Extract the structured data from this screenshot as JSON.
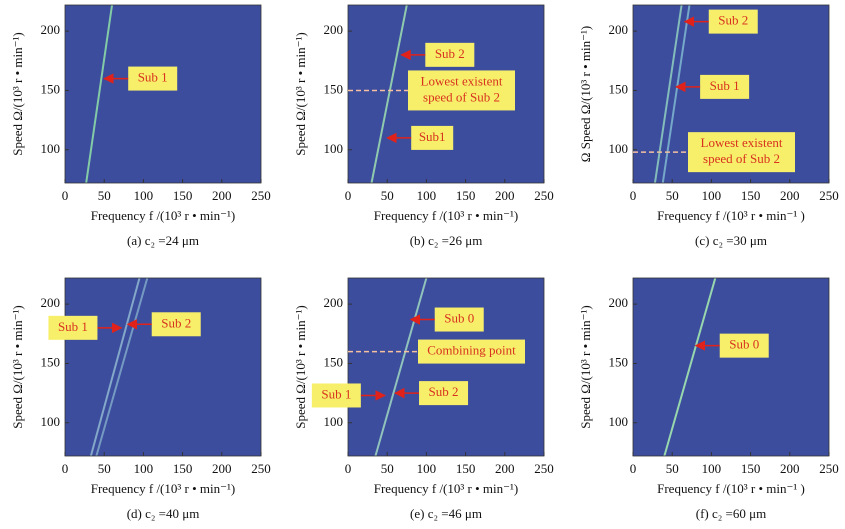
{
  "chart_data": [
    {
      "type": "line",
      "caption": "(a) c₂ =24 μm",
      "xlabel": "Frequency f /(10³ r • min⁻¹)",
      "ylabel": "Speed Ω/(10³ r • min⁻¹)",
      "xlim": [
        0,
        250
      ],
      "xticks": [
        0,
        50,
        100,
        150,
        200,
        250
      ],
      "ylim": [
        72,
        222
      ],
      "yticks": [
        100,
        150,
        200
      ],
      "background": "#3d4d9e",
      "series": [
        {
          "x": [
            27,
            60
          ],
          "values": [
            72,
            222
          ],
          "color": "#8fe0a8"
        }
      ],
      "annotations": [
        {
          "text": "Sub 1",
          "x": 50,
          "y": 160
        }
      ],
      "hlines": []
    },
    {
      "type": "line",
      "caption": "(b) c₂ =26 μm",
      "xlabel": "Frequency f /(10³ r • min⁻¹)",
      "ylabel": "Speed Ω/(10³ r • min⁻¹)",
      "xlim": [
        0,
        250
      ],
      "xticks": [
        0,
        50,
        100,
        150,
        200,
        250
      ],
      "ylim": [
        72,
        222
      ],
      "yticks": [
        100,
        150,
        200
      ],
      "background": "#3d4d9e",
      "series": [
        {
          "x": [
            30,
            75
          ],
          "values": [
            72,
            222
          ],
          "color": "#9fe0b0"
        }
      ],
      "annotations": [
        {
          "text": "Sub 2",
          "x": 68,
          "y": 180
        },
        {
          "text": "Sub1",
          "x": 50,
          "y": 110
        }
      ],
      "hlines": [
        {
          "y": 150,
          "text": [
            "Lowest existent",
            "speed of Sub 2"
          ]
        }
      ]
    },
    {
      "type": "line",
      "caption": "(c) c₂ =30 μm",
      "xlabel": "Frequency f /(10³ r • min⁻¹ )",
      "ylabel": "Ω Speed Ω/(10³ r • min⁻¹)",
      "xlim": [
        0,
        250
      ],
      "xticks": [
        0,
        50,
        100,
        150,
        200,
        250
      ],
      "ylim": [
        72,
        222
      ],
      "yticks": [
        100,
        150,
        200
      ],
      "background": "#3d4d9e",
      "series": [
        {
          "x": [
            28,
            62
          ],
          "values": [
            72,
            222
          ],
          "color": "#8fd0c0"
        },
        {
          "x": [
            38,
            72
          ],
          "values": [
            72,
            222
          ],
          "color": "#7fb8d0"
        }
      ],
      "annotations": [
        {
          "text": "Sub 2",
          "x": 66,
          "y": 208
        },
        {
          "text": "Sub 1",
          "x": 55,
          "y": 153
        }
      ],
      "hlines": [
        {
          "y": 98,
          "text": [
            "Lowest existent",
            "speed of Sub 2"
          ]
        }
      ]
    },
    {
      "type": "line",
      "caption": "(d) c₂ =40 μm",
      "xlabel": "Frequency f /(10³ r • min⁻¹)",
      "ylabel": "Speed Ω/(10³ r • min⁻¹)",
      "xlim": [
        0,
        250
      ],
      "xticks": [
        0,
        50,
        100,
        150,
        200,
        250
      ],
      "ylim": [
        72,
        222
      ],
      "yticks": [
        100,
        150,
        200
      ],
      "background": "#3d4d9e",
      "series": [
        {
          "x": [
            33,
            95
          ],
          "values": [
            72,
            222
          ],
          "color": "#8fb8d0"
        },
        {
          "x": [
            40,
            105
          ],
          "values": [
            72,
            222
          ],
          "color": "#7fa8c8"
        }
      ],
      "annotations": [
        {
          "text": "Sub 1",
          "x": 72,
          "y": 180
        },
        {
          "text": "Sub 2",
          "x": 80,
          "y": 183
        }
      ],
      "hlines": []
    },
    {
      "type": "line",
      "caption": "(e) c₂ =46 μm",
      "xlabel": "Frequency f /(10³ r • min⁻¹)",
      "ylabel": "Speed Ω/(10³ r • min⁻¹)",
      "xlim": [
        0,
        250
      ],
      "xticks": [
        0,
        50,
        100,
        150,
        200,
        250
      ],
      "ylim": [
        72,
        222
      ],
      "yticks": [
        100,
        150,
        200
      ],
      "background": "#3d4d9e",
      "series": [
        {
          "x": [
            35,
            100
          ],
          "values": [
            72,
            222
          ],
          "color": "#9fd8c0"
        }
      ],
      "annotations": [
        {
          "text": "Sub 0",
          "x": 80,
          "y": 187
        },
        {
          "text": "Sub 1",
          "x": 47,
          "y": 123
        },
        {
          "text": "Sub 2",
          "x": 60,
          "y": 125
        }
      ],
      "hlines": [
        {
          "y": 160,
          "text": [
            "Combining point"
          ]
        }
      ]
    },
    {
      "type": "line",
      "caption": "(f) c₂ =60 μm",
      "xlabel": "Frequency f /(10³ r • min⁻¹ )",
      "ylabel": "Speed Ω/(10³ r • min⁻¹)",
      "xlim": [
        0,
        250
      ],
      "xticks": [
        0,
        50,
        100,
        150,
        200,
        250
      ],
      "ylim": [
        72,
        222
      ],
      "yticks": [
        100,
        150,
        200
      ],
      "background": "#3d4d9e",
      "series": [
        {
          "x": [
            40,
            105
          ],
          "values": [
            72,
            222
          ],
          "color": "#a8f0b0"
        }
      ],
      "annotations": [
        {
          "text": "Sub 0",
          "x": 80,
          "y": 165
        }
      ],
      "hlines": []
    }
  ]
}
